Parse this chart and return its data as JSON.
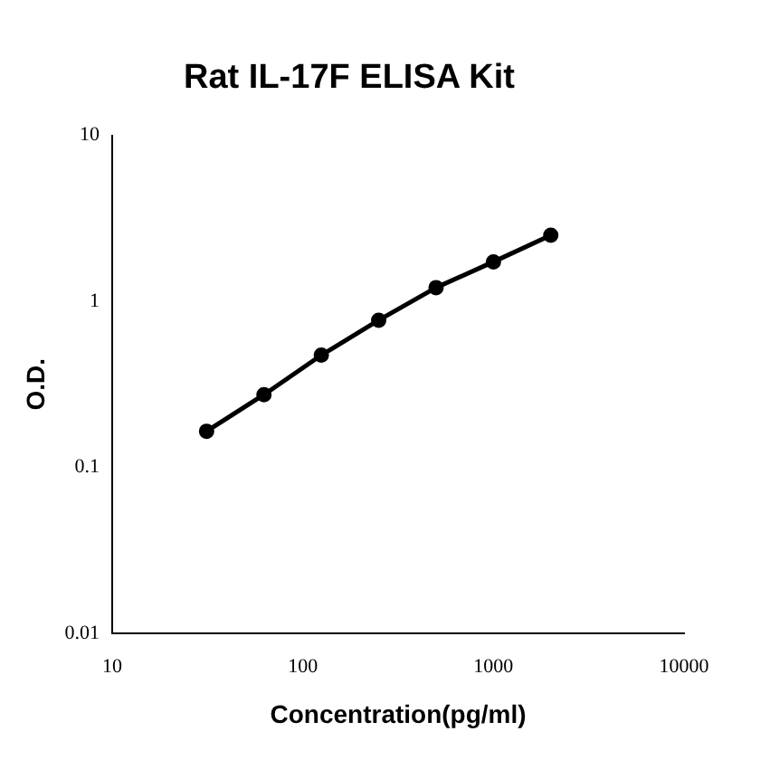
{
  "chart_data": {
    "type": "line",
    "title": "Rat IL-17F ELISA Kit",
    "xlabel": "Concentration(pg/ml)",
    "ylabel": "O.D.",
    "x": [
      31.25,
      62.5,
      125,
      250,
      500,
      1000,
      2000
    ],
    "series": [
      {
        "color": "#000000",
        "values": [
          0.165,
          0.274,
          0.474,
          0.77,
          1.21,
          1.73,
          2.5
        ]
      }
    ],
    "log": "xy",
    "xlim": [
      10,
      10000
    ],
    "xticks": [
      10,
      100,
      1000,
      10000
    ],
    "ylim": [
      0.01,
      10
    ],
    "yticks": [
      0.01,
      0.1,
      1,
      10
    ],
    "grid": false,
    "legend": false,
    "marker": "circle",
    "line_style": "solid"
  }
}
